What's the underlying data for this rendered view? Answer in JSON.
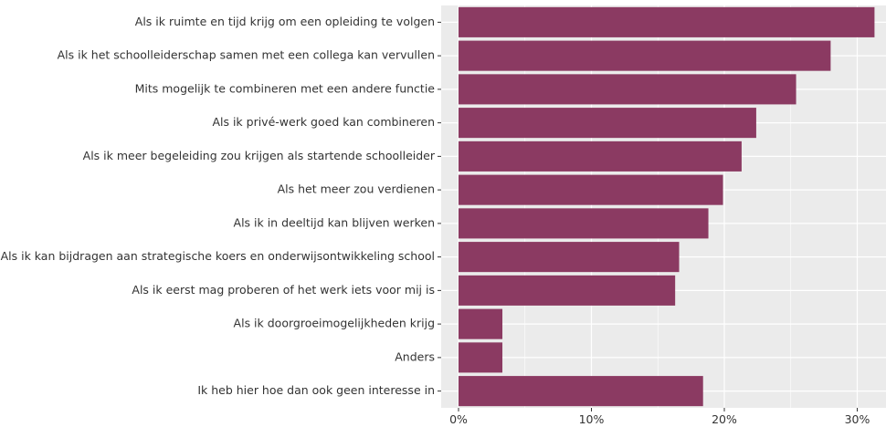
{
  "chart_data": {
    "type": "bar",
    "orientation": "horizontal",
    "title": "",
    "xlabel": "",
    "ylabel": "",
    "categories": [
      "Als ik ruimte en tijd krijg om een opleiding te volgen",
      "Als ik het schoolleiderschap samen met een collega kan vervullen",
      "Mits mogelijk te combineren met een andere functie",
      "Als ik privé-werk goed kan combineren",
      "Als ik meer begeleiding zou krijgen als startende schoolleider",
      "Als het meer zou verdienen",
      "Als ik in deeltijd kan blijven werken",
      "Als ik kan bijdragen aan strategische koers en onderwijsontwikkeling school",
      "Als ik eerst mag proberen of het werk iets voor mij is",
      "Als ik doorgroeimogelijkheden krijg",
      "Anders",
      "Ik heb hier hoe dan ook geen interesse in"
    ],
    "values": [
      31.3,
      28.0,
      25.4,
      22.4,
      21.3,
      19.9,
      18.8,
      16.6,
      16.3,
      3.3,
      3.3,
      18.4
    ],
    "value_unit": "percent",
    "xlim": [
      0,
      32
    ],
    "x_ticks": [
      0,
      10,
      20,
      30
    ],
    "x_tick_labels": [
      "0%",
      "10%",
      "20%",
      "30%"
    ],
    "bar_color": "#8b3a62",
    "panel_background": "#ebebeb",
    "grid_color": "#ffffff",
    "grid": true,
    "legend": "none"
  }
}
